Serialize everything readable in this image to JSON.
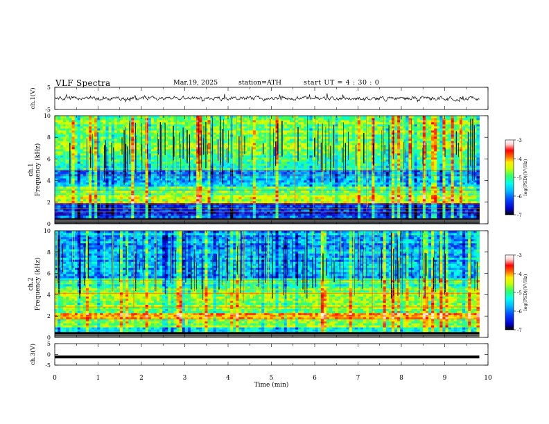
{
  "header": {
    "title": "VLF  Spectra",
    "date": "Mar.19, 2025",
    "station": "station=ATH",
    "start_ut": "start  UT  =   4  : 30 : 0"
  },
  "colors": {
    "colormap": [
      "#000000",
      "#0000cc",
      "#0044ff",
      "#00bbff",
      "#00ffee",
      "#33ff66",
      "#ccff00",
      "#ffee00",
      "#ff6600",
      "#ff0000",
      "#ffcccc",
      "#ffffff"
    ]
  },
  "chart_data": [
    {
      "type": "line",
      "panel": "ch1-waveform",
      "ylabel": "ch.1(V)",
      "ylim": [
        -5,
        5
      ],
      "yticks": [
        "5",
        "-5"
      ],
      "series": [
        {
          "x_range_min": [
            0,
            9.8
          ],
          "y_mean": 0,
          "y_variation": [
            -1.2,
            1.6
          ]
        }
      ]
    },
    {
      "type": "heatmap",
      "panel": "ch1-spectrogram",
      "ylabel_channel": "ch.1",
      "ylabel": "Frequency  (kHz)",
      "ylim": [
        0,
        10
      ],
      "yticks": [
        "0",
        "2",
        "4",
        "6",
        "8",
        "10"
      ],
      "x_range_min": [
        0,
        9.8
      ],
      "colorbar": {
        "label": "log(PSD)(V²/Hz)",
        "range": [
          -7,
          -3
        ],
        "ticks": [
          "-3",
          "-4",
          "-5",
          "-6",
          "-7"
        ]
      },
      "frequency_profile_logpsd": [
        {
          "f_khz": [
            0,
            0.8
          ],
          "log_psd": -6.3
        },
        {
          "f_khz": [
            0.8,
            2.0
          ],
          "log_psd": -6.4
        },
        {
          "f_khz": [
            2.0,
            2.6
          ],
          "log_psd": -4.8
        },
        {
          "f_khz": [
            2.6,
            3.4
          ],
          "log_psd": -5.2
        },
        {
          "f_khz": [
            3.4,
            5.0
          ],
          "log_psd": -5.9
        },
        {
          "f_khz": [
            5.0,
            7.0
          ],
          "log_psd": -5.3
        },
        {
          "f_khz": [
            7.0,
            10.0
          ],
          "log_psd": -5.0
        }
      ]
    },
    {
      "type": "heatmap",
      "panel": "ch2-spectrogram",
      "ylabel_channel": "ch.2",
      "ylabel": "Frequency  (kHz)",
      "ylim": [
        0,
        10
      ],
      "yticks": [
        "0",
        "2",
        "4",
        "6",
        "8",
        "10"
      ],
      "x_range_min": [
        0,
        9.8
      ],
      "colorbar": {
        "label": "log(PSD)(V²/Hz)",
        "range": [
          -7,
          -3
        ],
        "ticks": [
          "-3",
          "-4",
          "-5",
          "-6",
          "-7"
        ]
      },
      "frequency_profile_logpsd": [
        {
          "f_khz": [
            0,
            1.0
          ],
          "log_psd": -5.6
        },
        {
          "f_khz": [
            1.0,
            1.8
          ],
          "log_psd": -5.0
        },
        {
          "f_khz": [
            1.8,
            2.4
          ],
          "log_psd": -4.2
        },
        {
          "f_khz": [
            2.4,
            4.6
          ],
          "log_psd": -4.9
        },
        {
          "f_khz": [
            4.6,
            5.6
          ],
          "log_psd": -5.3
        },
        {
          "f_khz": [
            5.6,
            10.0
          ],
          "log_psd": -5.9
        }
      ]
    },
    {
      "type": "line",
      "panel": "ch3-waveform",
      "ylabel": "ch.3(V)",
      "ylim": [
        -5,
        5
      ],
      "yticks": [
        "5",
        "0",
        "-5"
      ],
      "series": [
        {
          "x_range_min": [
            0,
            9.8
          ],
          "y_mean": -1.2
        }
      ]
    }
  ],
  "x_axis": {
    "label": "Time  (min)",
    "range": [
      0,
      10
    ],
    "ticks": [
      "0",
      "1",
      "2",
      "3",
      "4",
      "5",
      "6",
      "7",
      "8",
      "9",
      "10"
    ]
  }
}
